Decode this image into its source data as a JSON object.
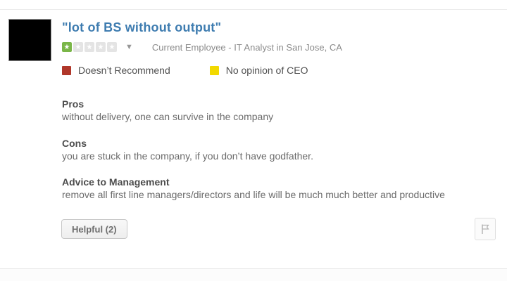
{
  "review": {
    "title": "\"lot of BS without output\"",
    "rating": {
      "value": 1,
      "max": 5,
      "star_glyph": "★"
    },
    "rating_caret": "▼",
    "meta": "Current Employee - IT Analyst in San Jose, CA",
    "badges": [
      {
        "label": "Doesn’t Recommend",
        "color": "#b0372a"
      },
      {
        "label": "No opinion of CEO",
        "color": "#f2d900"
      }
    ],
    "sections": [
      {
        "heading": "Pros",
        "body": "without delivery, one can survive in the company"
      },
      {
        "heading": "Cons",
        "body": "you are stuck in the company, if you don’t have godfather."
      },
      {
        "heading": "Advice to Management",
        "body": "remove all first line managers/directors and life will be much much better and productive"
      }
    ],
    "footer": {
      "helpful_label": "Helpful (2)"
    },
    "colors": {
      "title": "#3e7cb0",
      "star_filled": "#7ab648",
      "star_empty": "#e4e4e4",
      "flag_icon": "#b3b3b3"
    }
  }
}
